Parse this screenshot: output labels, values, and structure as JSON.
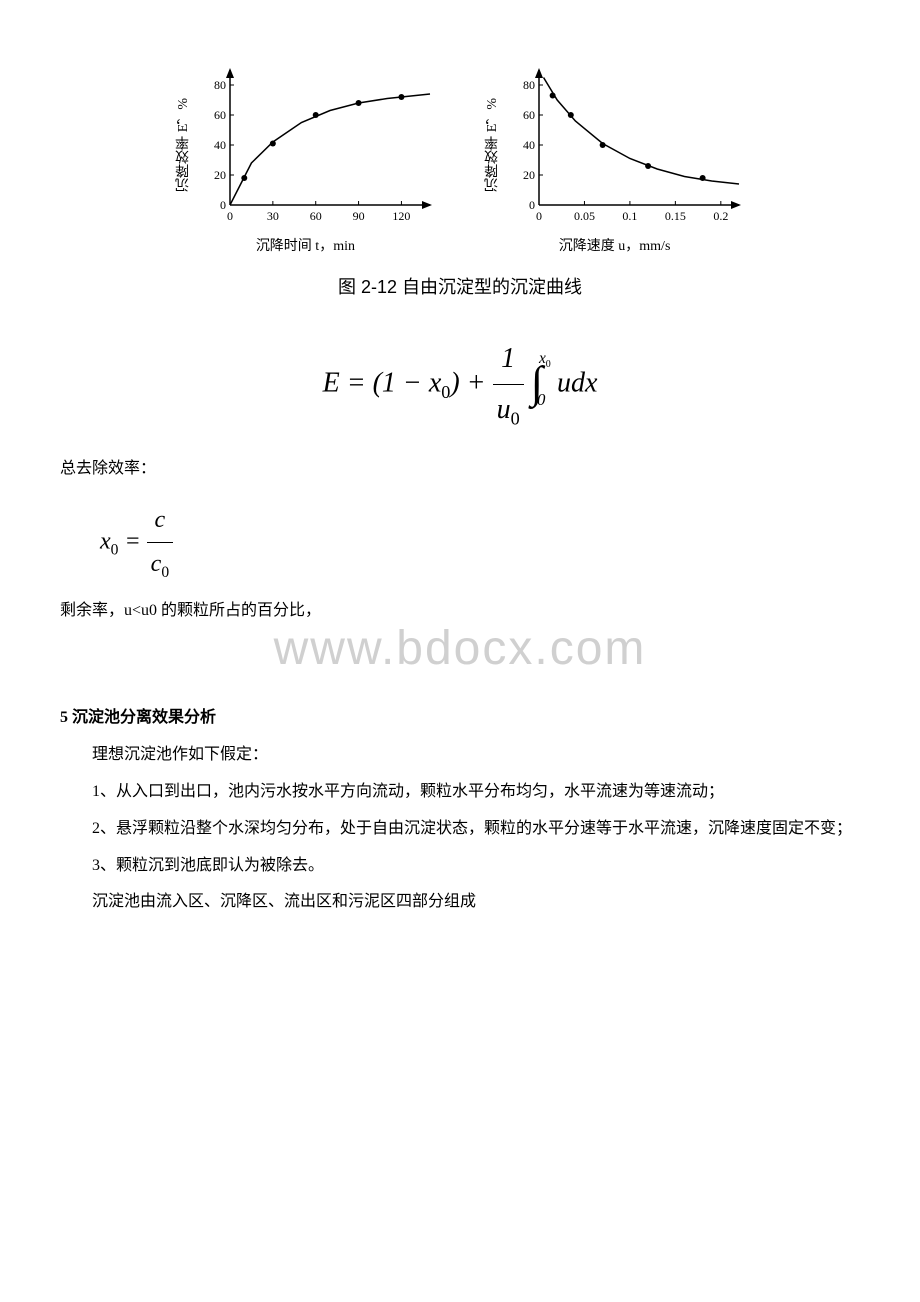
{
  "figure": {
    "caption": "图 2-12  自由沉淀型的沉淀曲线",
    "chart_left": {
      "type": "scatter-line",
      "y_label": "沉降效率 E，%",
      "x_label": "沉降时间 t，min",
      "x_ticks": [
        0,
        30,
        60,
        90,
        120
      ],
      "y_ticks": [
        0,
        20,
        40,
        60,
        80
      ],
      "xlim": [
        0,
        140
      ],
      "ylim": [
        0,
        90
      ],
      "points": [
        {
          "x": 10,
          "y": 18
        },
        {
          "x": 30,
          "y": 41
        },
        {
          "x": 60,
          "y": 60
        },
        {
          "x": 90,
          "y": 68
        },
        {
          "x": 120,
          "y": 72
        }
      ],
      "curve": [
        {
          "x": 0,
          "y": 0
        },
        {
          "x": 15,
          "y": 28
        },
        {
          "x": 30,
          "y": 42
        },
        {
          "x": 50,
          "y": 55
        },
        {
          "x": 70,
          "y": 63
        },
        {
          "x": 90,
          "y": 68
        },
        {
          "x": 110,
          "y": 71
        },
        {
          "x": 130,
          "y": 73
        },
        {
          "x": 140,
          "y": 74
        }
      ],
      "axis_color": "#000000",
      "point_color": "#000000",
      "line_color": "#000000",
      "tick_fontsize": 12
    },
    "chart_right": {
      "type": "scatter-line",
      "y_label": "沉降效率 E，%",
      "x_label": "沉降速度 u，mm/s",
      "x_ticks": [
        0,
        0.05,
        0.1,
        0.15,
        0.2
      ],
      "y_ticks": [
        0,
        20,
        40,
        60,
        80
      ],
      "xlim": [
        0,
        0.22
      ],
      "ylim": [
        0,
        90
      ],
      "points": [
        {
          "x": 0.015,
          "y": 73
        },
        {
          "x": 0.035,
          "y": 60
        },
        {
          "x": 0.07,
          "y": 40
        },
        {
          "x": 0.12,
          "y": 26
        },
        {
          "x": 0.18,
          "y": 18
        }
      ],
      "curve": [
        {
          "x": 0.005,
          "y": 85
        },
        {
          "x": 0.02,
          "y": 70
        },
        {
          "x": 0.04,
          "y": 56
        },
        {
          "x": 0.07,
          "y": 41
        },
        {
          "x": 0.1,
          "y": 31
        },
        {
          "x": 0.13,
          "y": 24
        },
        {
          "x": 0.16,
          "y": 19
        },
        {
          "x": 0.19,
          "y": 16
        },
        {
          "x": 0.22,
          "y": 14
        }
      ],
      "axis_color": "#000000",
      "point_color": "#000000",
      "line_color": "#000000",
      "tick_fontsize": 12
    }
  },
  "equations": {
    "total_removal_label": "总去除效率：",
    "residual_label": "剩余率，u<u0 的颗粒所占的百分比，"
  },
  "watermark": "www.bdocx.com",
  "section": {
    "heading": "5 沉淀池分离效果分析",
    "p1": "理想沉淀池作如下假定：",
    "p2": "1、从入口到出口，池内污水按水平方向流动，颗粒水平分布均匀，水平流速为等速流动；",
    "p3": "2、悬浮颗粒沿整个水深均匀分布，处于自由沉淀状态，颗粒的水平分速等于水平流速，沉降速度固定不变；",
    "p4": "3、颗粒沉到池底即认为被除去。",
    "p5": "沉淀池由流入区、沉降区、流出区和污泥区四部分组成"
  }
}
